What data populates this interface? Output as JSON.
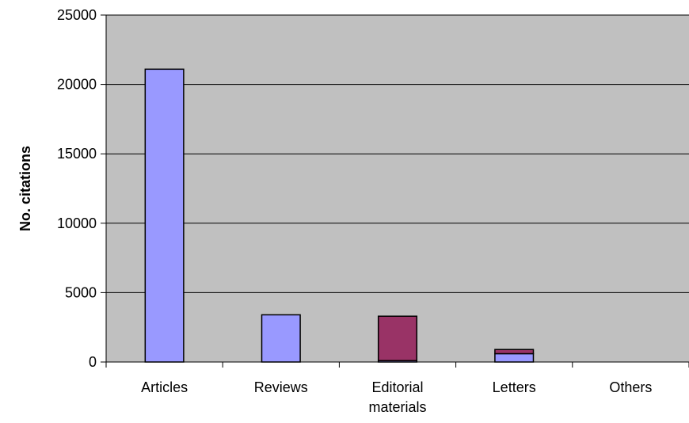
{
  "chart_data": {
    "type": "bar",
    "stacked": true,
    "categories": [
      "Articles",
      "Reviews",
      "Editorial materials",
      "Letters",
      "Others"
    ],
    "category_label_lines": [
      [
        "Articles"
      ],
      [
        "Reviews"
      ],
      [
        "Editorial",
        "materials"
      ],
      [
        "Letters"
      ],
      [
        "Others"
      ]
    ],
    "series": [
      {
        "color": "#9999ff",
        "values": [
          21100,
          3400,
          100,
          600,
          0
        ]
      },
      {
        "color": "#993366",
        "values": [
          0,
          0,
          3200,
          300,
          0
        ]
      }
    ],
    "ylabel": "No. citations",
    "xlabel": "",
    "ylim": [
      0,
      25000
    ],
    "yticks": [
      0,
      5000,
      10000,
      15000,
      20000,
      25000
    ],
    "grid": true,
    "legend": "none",
    "plot_background": "#c0c0c0"
  }
}
